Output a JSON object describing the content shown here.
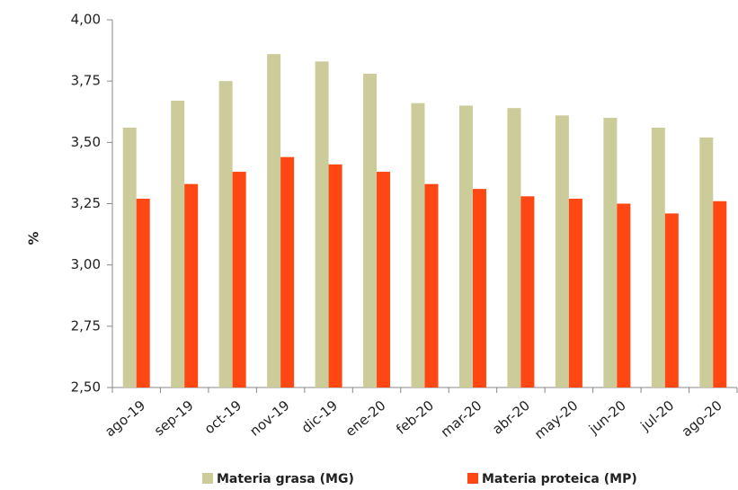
{
  "chart_data": {
    "type": "bar",
    "y_label": "%",
    "categories": [
      "ago-19",
      "sep-19",
      "oct-19",
      "nov-19",
      "dic-19",
      "ene-20",
      "feb-20",
      "mar-20",
      "abr-20",
      "may-20",
      "jun-20",
      "jul-20",
      "ago-20"
    ],
    "series": [
      {
        "name": "Materia grasa (MG)",
        "color": "#cccc9a",
        "values": [
          3.56,
          3.67,
          3.75,
          3.86,
          3.83,
          3.78,
          3.66,
          3.65,
          3.64,
          3.61,
          3.6,
          3.56,
          3.52
        ]
      },
      {
        "name": "Materia proteica (MP)",
        "color": "#ff4713",
        "values": [
          3.27,
          3.33,
          3.38,
          3.44,
          3.41,
          3.38,
          3.33,
          3.31,
          3.28,
          3.27,
          3.25,
          3.21,
          3.26
        ]
      }
    ],
    "ylim": [
      2.5,
      4.0
    ],
    "yticks": [
      {
        "value": 2.5,
        "label": "2,50"
      },
      {
        "value": 2.75,
        "label": "2,75"
      },
      {
        "value": 3.0,
        "label": "3,00"
      },
      {
        "value": 3.25,
        "label": "3,25"
      },
      {
        "value": 3.5,
        "label": "3,50"
      },
      {
        "value": 3.75,
        "label": "3,75"
      },
      {
        "value": 4.0,
        "label": "4,00"
      }
    ],
    "grid": false
  }
}
